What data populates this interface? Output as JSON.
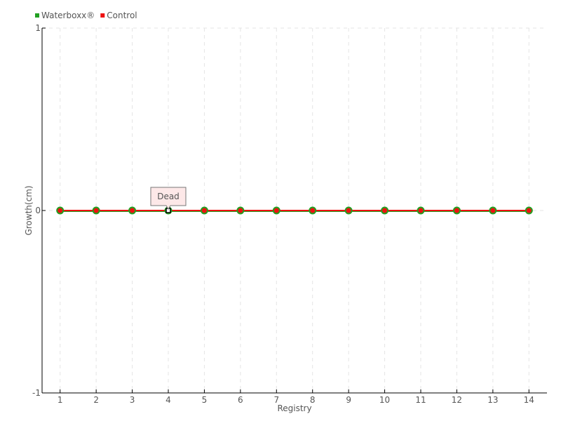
{
  "chart_data": {
    "type": "line",
    "categories": [
      "1",
      "2",
      "3",
      "4",
      "5",
      "6",
      "7",
      "8",
      "9",
      "10",
      "11",
      "12",
      "13",
      "14"
    ],
    "series": [
      {
        "name": "Waterboxx®",
        "color": "#22a022",
        "values": [
          0,
          0,
          0,
          0,
          0,
          0,
          0,
          0,
          0,
          0,
          0,
          0,
          0,
          0
        ]
      },
      {
        "name": "Control",
        "color": "#ee1111",
        "values": [
          0,
          0,
          0,
          0,
          0,
          0,
          0,
          0,
          0,
          0,
          0,
          0,
          0,
          0
        ]
      }
    ],
    "xlabel": "Registry",
    "ylabel": "Growth(cm)",
    "ylim": [
      -1,
      1
    ],
    "yticks": [
      "-1",
      "0",
      "1"
    ],
    "grid": true,
    "legend": "top-left",
    "tooltip": {
      "category": "4",
      "text": "Dead"
    }
  }
}
